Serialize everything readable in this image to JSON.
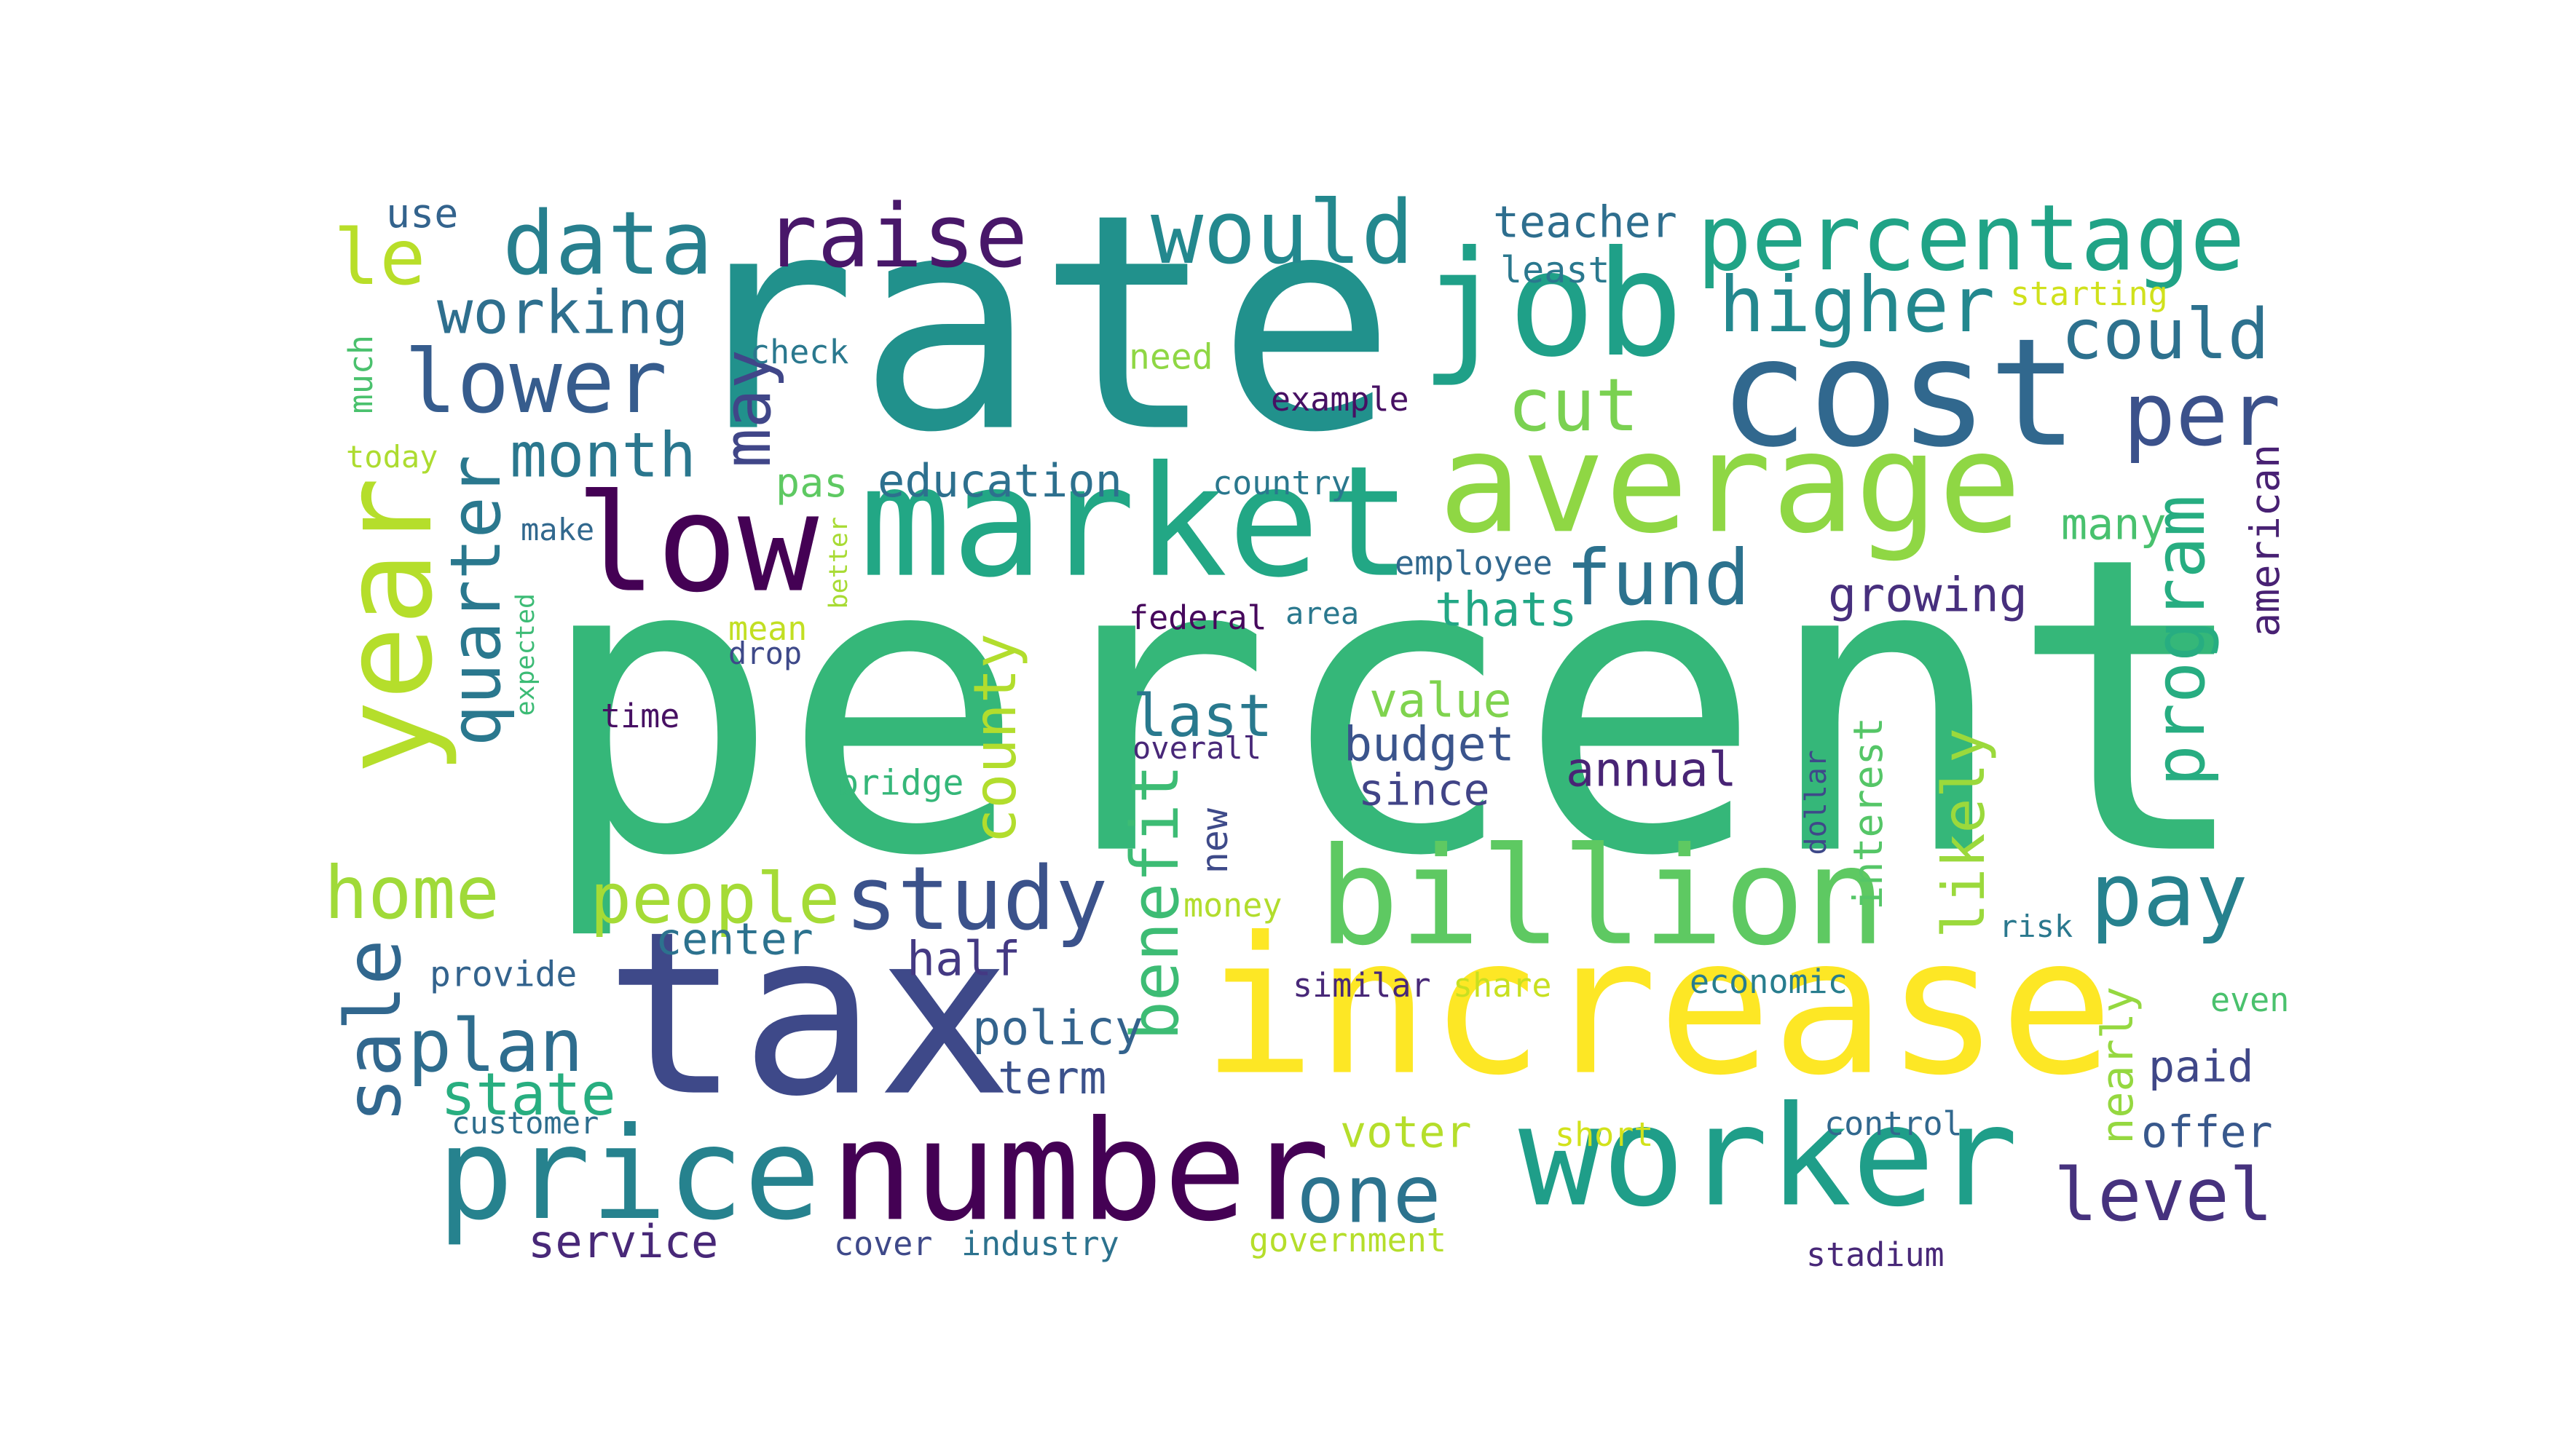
{
  "words": [
    {
      "text": "percent",
      "color": "#35b779",
      "rotated": false
    },
    {
      "text": "rate",
      "color": "#21918c",
      "rotated": false
    },
    {
      "text": "tax",
      "color": "#3e4989",
      "rotated": false
    },
    {
      "text": "increase",
      "color": "#fde725",
      "rotated": false
    },
    {
      "text": "market",
      "color": "#22a785",
      "rotated": false
    },
    {
      "text": "job",
      "color": "#1fa088",
      "rotated": false
    },
    {
      "text": "cost",
      "color": "#31688e",
      "rotated": false
    },
    {
      "text": "average",
      "color": "#8fd744",
      "rotated": false
    },
    {
      "text": "billion",
      "color": "#5ec962",
      "rotated": false
    },
    {
      "text": "worker",
      "color": "#1f9e89",
      "rotated": false
    },
    {
      "text": "number",
      "color": "#440154",
      "rotated": false
    },
    {
      "text": "price",
      "color": "#26828e",
      "rotated": false
    },
    {
      "text": "low",
      "color": "#440154",
      "rotated": false
    },
    {
      "text": "year",
      "color": "#b5de2b",
      "rotated": true
    },
    {
      "text": "percentage",
      "color": "#20a386",
      "rotated": false
    },
    {
      "text": "raise",
      "color": "#481769",
      "rotated": false
    },
    {
      "text": "would",
      "color": "#23888e",
      "rotated": false
    },
    {
      "text": "data",
      "color": "#277f8e",
      "rotated": false
    },
    {
      "text": "le",
      "color": "#b8de29",
      "rotated": false
    },
    {
      "text": "higher",
      "color": "#23888e",
      "rotated": false
    },
    {
      "text": "could",
      "color": "#2d718e",
      "rotated": false
    },
    {
      "text": "lower",
      "color": "#365c8d",
      "rotated": false
    },
    {
      "text": "working",
      "color": "#2e6f8e",
      "rotated": false
    },
    {
      "text": "per",
      "color": "#3b518b",
      "rotated": false
    },
    {
      "text": "cut",
      "color": "#7ad151",
      "rotated": false
    },
    {
      "text": "month",
      "color": "#2a778e",
      "rotated": false
    },
    {
      "text": "quarter",
      "color": "#2a788e",
      "rotated": true
    },
    {
      "text": "may",
      "color": "#404688",
      "rotated": true
    },
    {
      "text": "fund",
      "color": "#2c728e",
      "rotated": false
    },
    {
      "text": "program",
      "color": "#27ad81",
      "rotated": true
    },
    {
      "text": "study",
      "color": "#3b528b",
      "rotated": false
    },
    {
      "text": "home",
      "color": "#a0da39",
      "rotated": false
    },
    {
      "text": "people",
      "color": "#a5db36",
      "rotated": false
    },
    {
      "text": "pay",
      "color": "#26818e",
      "rotated": false
    },
    {
      "text": "sale",
      "color": "#31678e",
      "rotated": true
    },
    {
      "text": "plan",
      "color": "#2e6d8e",
      "rotated": false
    },
    {
      "text": "state",
      "color": "#28ae80",
      "rotated": false
    },
    {
      "text": "one",
      "color": "#2c738e",
      "rotated": false
    },
    {
      "text": "level",
      "color": "#46327e",
      "rotated": false
    },
    {
      "text": "benefit",
      "color": "#3dbc74",
      "rotated": true
    },
    {
      "text": "likely",
      "color": "#9bd93c",
      "rotated": true
    },
    {
      "text": "county",
      "color": "#b2dd2d",
      "rotated": true
    },
    {
      "text": "last",
      "color": "#29798e",
      "rotated": false
    },
    {
      "text": "education",
      "color": "#2d708e",
      "rotated": false
    },
    {
      "text": "growing",
      "color": "#472f7d",
      "rotated": false
    },
    {
      "text": "thats",
      "color": "#22a785",
      "rotated": false
    },
    {
      "text": "many",
      "color": "#48c16e",
      "rotated": false
    },
    {
      "text": "american",
      "color": "#482173",
      "rotated": true
    },
    {
      "text": "value",
      "color": "#7fd34e",
      "rotated": false
    },
    {
      "text": "budget",
      "color": "#3a548c",
      "rotated": false
    },
    {
      "text": "annual",
      "color": "#482475",
      "rotated": false
    },
    {
      "text": "since",
      "color": "#414487",
      "rotated": false
    },
    {
      "text": "interest",
      "color": "#55c667",
      "rotated": true
    },
    {
      "text": "new",
      "color": "#3e4a89",
      "rotated": true
    },
    {
      "text": "half",
      "color": "#443983",
      "rotated": false
    },
    {
      "text": "center",
      "color": "#2c728e",
      "rotated": false
    },
    {
      "text": "policy",
      "color": "#33638d",
      "rotated": false
    },
    {
      "text": "term",
      "color": "#3b518b",
      "rotated": false
    },
    {
      "text": "nearly",
      "color": "#95d840",
      "rotated": true
    },
    {
      "text": "paid",
      "color": "#3f4788",
      "rotated": false
    },
    {
      "text": "offer",
      "color": "#38588c",
      "rotated": false
    },
    {
      "text": "voter",
      "color": "#b5de2b",
      "rotated": false
    },
    {
      "text": "service",
      "color": "#482878",
      "rotated": false
    },
    {
      "text": "teacher",
      "color": "#2e6e8e",
      "rotated": false
    },
    {
      "text": "least",
      "color": "#2a788e",
      "rotated": false
    },
    {
      "text": "starting",
      "color": "#d0e11c",
      "rotated": false
    },
    {
      "text": "use",
      "color": "#33638d",
      "rotated": false
    },
    {
      "text": "much",
      "color": "#4ac16d",
      "rotated": true
    },
    {
      "text": "today",
      "color": "#addc30",
      "rotated": false
    },
    {
      "text": "check",
      "color": "#2a788e",
      "rotated": false
    },
    {
      "text": "need",
      "color": "#8fd744",
      "rotated": false
    },
    {
      "text": "example",
      "color": "#471063",
      "rotated": false
    },
    {
      "text": "country",
      "color": "#2a788e",
      "rotated": false
    },
    {
      "text": "make",
      "color": "#31688e",
      "rotated": false
    },
    {
      "text": "better",
      "color": "#a8db34",
      "rotated": true
    },
    {
      "text": "employee",
      "color": "#31688e",
      "rotated": false
    },
    {
      "text": "federal",
      "color": "#46085c",
      "rotated": false
    },
    {
      "text": "area",
      "color": "#2a788e",
      "rotated": false
    },
    {
      "text": "mean",
      "color": "#c2df23",
      "rotated": false
    },
    {
      "text": "drop",
      "color": "#3e4989",
      "rotated": false
    },
    {
      "text": "expected",
      "color": "#3cbb75",
      "rotated": true
    },
    {
      "text": "pas",
      "color": "#5ec962",
      "rotated": false
    },
    {
      "text": "time",
      "color": "#471063",
      "rotated": false
    },
    {
      "text": "overall",
      "color": "#482878",
      "rotated": false
    },
    {
      "text": "bridge",
      "color": "#35b779",
      "rotated": false
    },
    {
      "text": "dollar",
      "color": "#3e4989",
      "rotated": true
    },
    {
      "text": "money",
      "color": "#b2dd2d",
      "rotated": false
    },
    {
      "text": "risk",
      "color": "#2a788e",
      "rotated": false
    },
    {
      "text": "provide",
      "color": "#33638d",
      "rotated": false
    },
    {
      "text": "similar",
      "color": "#482878",
      "rotated": false
    },
    {
      "text": "share",
      "color": "#c8e020",
      "rotated": false
    },
    {
      "text": "economic",
      "color": "#287d8e",
      "rotated": false
    },
    {
      "text": "even",
      "color": "#4ac16d",
      "rotated": false
    },
    {
      "text": "customer",
      "color": "#2e6e8e",
      "rotated": false
    },
    {
      "text": "short",
      "color": "#d2e21b",
      "rotated": false
    },
    {
      "text": "control",
      "color": "#31688e",
      "rotated": false
    },
    {
      "text": "cover",
      "color": "#3e4989",
      "rotated": false
    },
    {
      "text": "industry",
      "color": "#2c728e",
      "rotated": false
    },
    {
      "text": "government",
      "color": "#b5de2b",
      "rotated": false
    },
    {
      "text": "stadium",
      "color": "#482878",
      "rotated": false
    }
  ]
}
